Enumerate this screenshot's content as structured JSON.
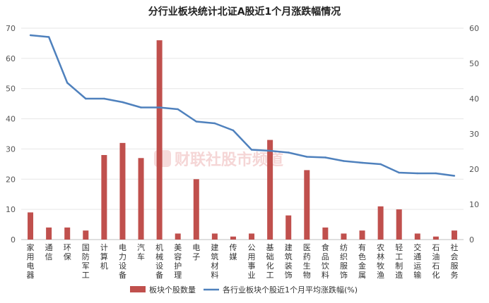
{
  "chart_data": {
    "type": "bar",
    "title": "分行业板块统计北证A股近1个月涨跌幅情况",
    "watermark": "财联社股市频道",
    "categories": [
      "家用电器",
      "通信",
      "环保",
      "国防军工",
      "计算机",
      "电力设备",
      "汽车",
      "机械设备",
      "美容护理",
      "电子",
      "建筑材料",
      "传媒",
      "公用事业",
      "基础化工",
      "建筑装饰",
      "医药生物",
      "食品饮料",
      "纺织服饰",
      "有色金属",
      "农林牧渔",
      "轻工制造",
      "交通运输",
      "石油石化",
      "社会服务"
    ],
    "series": [
      {
        "name": "板块个股数量",
        "type": "bar",
        "axis": "left",
        "color": "#c0504d",
        "values": [
          9,
          4,
          4,
          3,
          28,
          32,
          27,
          66,
          2,
          20,
          2,
          1,
          2,
          33,
          8,
          23,
          4,
          2,
          3,
          11,
          10,
          2,
          1,
          3
        ]
      },
      {
        "name": "各行业板块个股近1个月平均涨跌幅(%)",
        "type": "line",
        "axis": "right",
        "color": "#4f81bd",
        "values": [
          58,
          57.5,
          44.5,
          40,
          40,
          39,
          37.5,
          37.5,
          37,
          33.5,
          33,
          31,
          25.5,
          25.2,
          24.7,
          23.5,
          23.3,
          22.3,
          21.8,
          21.4,
          19,
          18.8,
          18.8,
          18.1
        ]
      }
    ],
    "y_left": {
      "min": 0,
      "max": 70,
      "ticks": [
        0,
        10,
        20,
        30,
        40,
        50,
        60,
        70
      ]
    },
    "y_right": {
      "min": 0,
      "max": 60,
      "ticks": [
        0,
        10,
        20,
        30,
        40,
        50,
        60
      ]
    },
    "legend_position": "bottom"
  }
}
